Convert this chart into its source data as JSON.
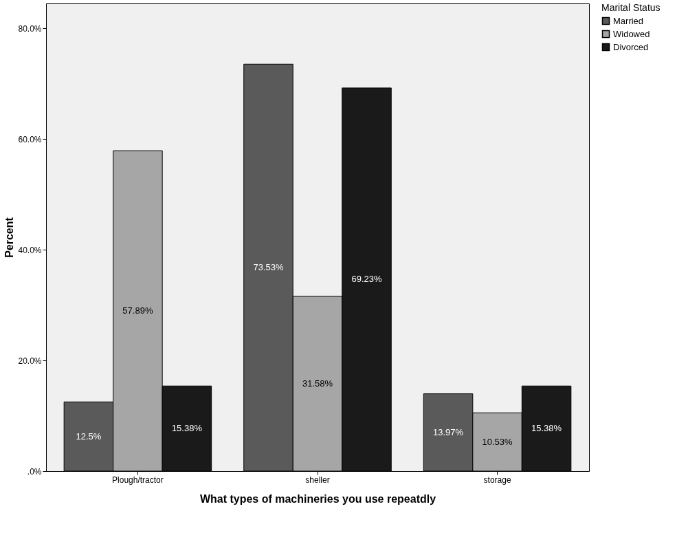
{
  "chart_data": {
    "type": "bar",
    "xlabel": "What types of machineries you use repeatdly",
    "ylabel": "Percent",
    "legend_title": "Marital Status",
    "categories": [
      "Plough/tractor",
      "sheller",
      "storage"
    ],
    "series": [
      {
        "name": "Married",
        "color": "#5a5a5a",
        "values": [
          12.5,
          73.53,
          13.97
        ],
        "value_labels": [
          "12.5%",
          "73.53%",
          "13.97%"
        ]
      },
      {
        "name": "Widowed",
        "color": "#a6a6a6",
        "values": [
          57.89,
          31.58,
          10.53
        ],
        "value_labels": [
          "57.89%",
          "31.58%",
          "10.53%"
        ]
      },
      {
        "name": "Divorced",
        "color": "#1a1a1a",
        "values": [
          15.38,
          69.23,
          15.38
        ],
        "value_labels": [
          "15.38%",
          "69.23%",
          "15.38%"
        ]
      }
    ],
    "ylim": [
      0,
      84.5
    ],
    "yticks": [
      {
        "value": 0,
        "label": ".0%"
      },
      {
        "value": 20,
        "label": "20.0%"
      },
      {
        "value": 40,
        "label": "40.0%"
      },
      {
        "value": 60,
        "label": "60.0%"
      },
      {
        "value": 80,
        "label": "80.0%"
      }
    ],
    "grid": false,
    "legend": "top right"
  }
}
